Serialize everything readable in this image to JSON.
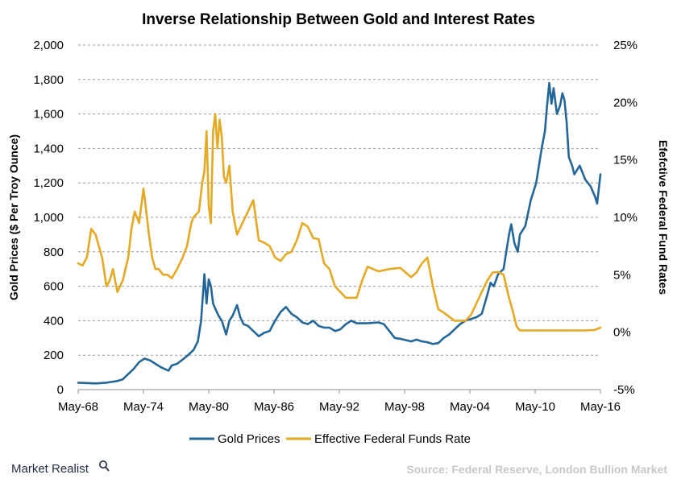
{
  "chart_data": {
    "type": "line",
    "title": "Inverse Relationship Between Gold and Interest Rates",
    "ylabel": "Gold Prices ($ Per Troy Ounce)",
    "y2label": "Efefctive Federal Fund Rates",
    "ylim": [
      0,
      2000
    ],
    "y2lim": [
      -5,
      25
    ],
    "x_ticks": [
      "May-68",
      "May-74",
      "May-80",
      "May-86",
      "May-92",
      "May-98",
      "May-04",
      "May-10",
      "May-16"
    ],
    "y_ticks": [
      "0",
      "200",
      "400",
      "600",
      "800",
      "1,000",
      "1,200",
      "1,400",
      "1,600",
      "1,800",
      "2,000"
    ],
    "y2_ticks": [
      "-5%",
      "0%",
      "5%",
      "10%",
      "15%",
      "20%",
      "25%"
    ],
    "grid": true,
    "legend": "bottom",
    "series": [
      {
        "name": "Gold Prices",
        "axis": "left",
        "color": "#23679a",
        "x": [
          1968.4,
          1970,
          1971,
          1972,
          1972.5,
          1973,
          1973.5,
          1974,
          1974.5,
          1975,
          1975.5,
          1976,
          1976.7,
          1977,
          1977.5,
          1978,
          1978.5,
          1979,
          1979.4,
          1979.7,
          1980.0,
          1980.2,
          1980.4,
          1980.6,
          1980.8,
          1981,
          1981.3,
          1981.6,
          1982,
          1982.3,
          1982.6,
          1983.0,
          1983.3,
          1983.6,
          1984,
          1984.5,
          1985,
          1985.5,
          1986,
          1986.5,
          1987,
          1987.5,
          1988,
          1988.5,
          1989,
          1989.5,
          1990,
          1990.5,
          1991,
          1991.5,
          1992,
          1992.5,
          1993,
          1993.5,
          1994,
          1995,
          1996,
          1996.5,
          1997,
          1997.5,
          1998,
          1999,
          1999.5,
          2000,
          2000.5,
          2001,
          2001.5,
          2002,
          2002.5,
          2003,
          2003.5,
          2004,
          2004.5,
          2005,
          2005.5,
          2006,
          2006.3,
          2006.6,
          2007,
          2007.5,
          2008,
          2008.2,
          2008.5,
          2008.8,
          2009,
          2009.5,
          2010,
          2010.5,
          2011,
          2011.3,
          2011.5,
          2011.7,
          2011.9,
          2012.1,
          2012.4,
          2012.7,
          2012.9,
          2013.1,
          2013.3,
          2013.5,
          2013.8,
          2014,
          2014.5,
          2015,
          2015.5,
          2015.9,
          2016.1,
          2016.4
        ],
        "values": [
          40,
          36,
          40,
          50,
          60,
          90,
          120,
          160,
          180,
          170,
          150,
          130,
          110,
          140,
          150,
          175,
          200,
          230,
          280,
          400,
          670,
          500,
          640,
          600,
          500,
          470,
          430,
          400,
          320,
          400,
          430,
          490,
          420,
          380,
          370,
          340,
          310,
          330,
          340,
          400,
          450,
          480,
          440,
          420,
          390,
          380,
          400,
          370,
          360,
          360,
          340,
          350,
          380,
          400,
          385,
          385,
          390,
          380,
          340,
          300,
          295,
          280,
          290,
          280,
          275,
          265,
          270,
          300,
          320,
          350,
          380,
          400,
          410,
          420,
          440,
          550,
          620,
          600,
          670,
          700,
          900,
          960,
          850,
          800,
          900,
          950,
          1100,
          1200,
          1400,
          1500,
          1650,
          1780,
          1660,
          1750,
          1600,
          1650,
          1720,
          1680,
          1550,
          1350,
          1300,
          1250,
          1300,
          1220,
          1180,
          1120,
          1080,
          1250
        ]
      },
      {
        "name": "Effective Federal Funds Rate",
        "axis": "right",
        "color": "#e6a924",
        "x": [
          1968.4,
          1968.8,
          1969.2,
          1969.6,
          1970,
          1970.3,
          1970.6,
          1971,
          1971.3,
          1971.6,
          1972,
          1972.5,
          1973,
          1973.3,
          1973.6,
          1974,
          1974.4,
          1974.6,
          1974.9,
          1975.2,
          1975.5,
          1975.8,
          1976.2,
          1976.6,
          1977,
          1977.5,
          1978,
          1978.4,
          1978.8,
          1979,
          1979.5,
          1979.8,
          1980.0,
          1980.2,
          1980.4,
          1980.6,
          1980.8,
          1981.0,
          1981.2,
          1981.4,
          1981.6,
          1981.8,
          1982.0,
          1982.3,
          1982.6,
          1983,
          1983.5,
          1984,
          1984.5,
          1985,
          1985.5,
          1986,
          1986.5,
          1987,
          1987.5,
          1988,
          1988.5,
          1989,
          1989.5,
          1990,
          1990.5,
          1991,
          1991.5,
          1992,
          1993,
          1994,
          1994.5,
          1995,
          1996,
          1997,
          1998,
          1998.5,
          1999,
          1999.5,
          2000,
          2000.5,
          2001,
          2001.5,
          2002,
          2003,
          2004,
          2004.5,
          2005,
          2005.5,
          2006,
          2006.5,
          2007,
          2007.5,
          2008,
          2008.3,
          2008.7,
          2009,
          2012,
          2015,
          2015.9,
          2016.4
        ],
        "values": [
          6,
          5.8,
          6.5,
          9,
          8.5,
          7.5,
          6.5,
          4,
          4.5,
          5.5,
          3.5,
          4.5,
          6.5,
          9,
          10.5,
          9.5,
          12.5,
          11,
          8.5,
          6.5,
          5.5,
          5.5,
          5,
          5,
          4.7,
          5.5,
          6.5,
          7.5,
          9.5,
          10,
          10.5,
          13,
          14,
          17.5,
          11,
          9.5,
          17.5,
          19,
          16,
          18.5,
          17,
          13.5,
          13,
          14.5,
          10.5,
          8.5,
          9.5,
          10.5,
          11.5,
          8,
          7.8,
          7.5,
          6.5,
          6.2,
          6.8,
          7,
          8,
          9.5,
          9.2,
          8.2,
          8.1,
          6,
          5.5,
          4,
          3,
          3,
          4.5,
          5.7,
          5.3,
          5.5,
          5.6,
          5.2,
          4.8,
          5.2,
          6,
          6.5,
          4,
          2,
          1.7,
          1,
          1,
          1.5,
          2.5,
          3.5,
          4.5,
          5.2,
          5.25,
          5,
          3,
          2,
          0.5,
          0.15,
          0.15,
          0.15,
          0.2,
          0.4
        ]
      }
    ]
  },
  "brand": {
    "name": "Market Realist",
    "source": "Source: Federal Reserve, London Bullion Market"
  }
}
